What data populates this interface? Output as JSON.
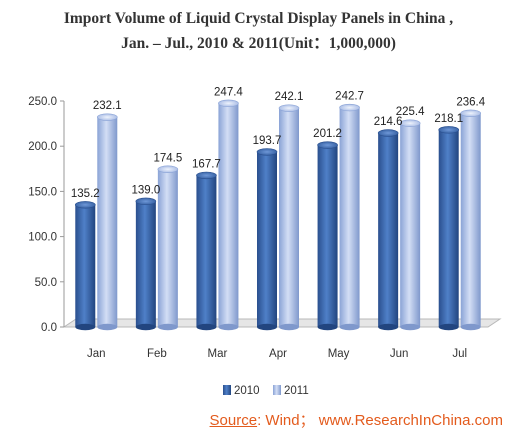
{
  "chart_data": {
    "type": "bar",
    "title": "Import Volume of Liquid Crystal Display Panels in China ,",
    "subtitle": "Jan. – Jul., 2010 & 2011(Unit：1,000,000)",
    "categories": [
      "Jan",
      "Feb",
      "Mar",
      "Apr",
      "May",
      "Jun",
      "Jul"
    ],
    "series": [
      {
        "name": "2010",
        "values": [
          135.2,
          139.0,
          167.7,
          193.7,
          201.2,
          214.6,
          218.1
        ],
        "labels": [
          "135.2",
          "139.0",
          "167.7",
          "193.7",
          "201.2",
          "214.6",
          "218.1"
        ],
        "color": "#3a68b0"
      },
      {
        "name": "2011",
        "values": [
          232.1,
          174.5,
          247.4,
          242.1,
          242.7,
          225.4,
          236.4
        ],
        "labels": [
          "232.1",
          "174.5",
          "247.4",
          "242.1",
          "242.7",
          "225.4",
          "236.4"
        ],
        "color": "#a9bde8"
      }
    ],
    "yticks": [
      "0.0",
      "50.0",
      "100.0",
      "150.0",
      "200.0",
      "250.0"
    ],
    "ylim": [
      0,
      250
    ],
    "grid": false,
    "legend_position": "bottom"
  },
  "source": {
    "label": "Source",
    "text": ": Wind； www.ResearchInChina.com"
  }
}
